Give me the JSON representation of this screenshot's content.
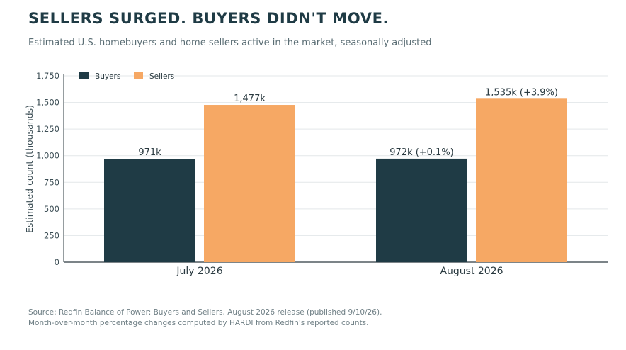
{
  "header": {
    "title": "SELLERS SURGED. BUYERS DIDN'T MOVE.",
    "subtitle": "Estimated U.S. homebuyers and home sellers active in the market, seasonally adjusted"
  },
  "footer": {
    "source": "Source: Redfin Balance of Power: Buyers and Sellers, August 2026 release (published 9/10/26).",
    "note": "Month-over-month percentage changes computed by HARDI from Redfin's reported counts."
  },
  "chart_data": {
    "type": "bar",
    "ylabel": "Estimated count (thousands)",
    "xlabel": "",
    "ylim": [
      0,
      1750
    ],
    "yticks": [
      0,
      250,
      500,
      750,
      1000,
      1250,
      1500,
      1750
    ],
    "ytick_labels": [
      "0",
      "250",
      "500",
      "750",
      "1,000",
      "1,250",
      "1,500",
      "1,750"
    ],
    "grid": true,
    "legend_position": "top-left",
    "categories": [
      "July 2026",
      "August 2026"
    ],
    "series": [
      {
        "name": "Buyers",
        "color": "#1f3b45",
        "values": [
          971,
          972
        ],
        "labels": [
          "971k",
          "972k  (+0.1%)"
        ]
      },
      {
        "name": "Sellers",
        "color": "#f6a864",
        "values": [
          1477,
          1535
        ],
        "labels": [
          "1,477k",
          "1,535k  (+3.9%)"
        ]
      }
    ]
  }
}
